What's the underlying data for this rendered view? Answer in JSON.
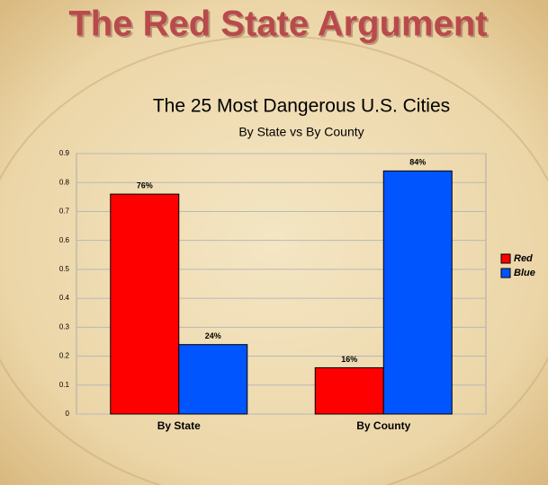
{
  "slide_title": "The Red State Argument",
  "chart_data": {
    "type": "bar",
    "title": "The 25 Most Dangerous U.S. Cities",
    "subtitle": "By State vs By County",
    "categories": [
      "By State",
      "By County"
    ],
    "series": [
      {
        "name": "Red",
        "color": "#ff0000",
        "values": [
          0.76,
          0.16
        ],
        "value_labels": [
          "76%",
          "16%"
        ]
      },
      {
        "name": "Blue",
        "color": "#0055ff",
        "values": [
          0.24,
          0.84
        ],
        "value_labels": [
          "24%",
          "84%"
        ]
      }
    ],
    "ylim": [
      0,
      0.9
    ],
    "yticks": [
      0,
      0.1,
      0.2,
      0.3,
      0.4,
      0.5,
      0.6,
      0.7,
      0.8,
      0.9
    ],
    "grid": true,
    "legend": "right"
  }
}
